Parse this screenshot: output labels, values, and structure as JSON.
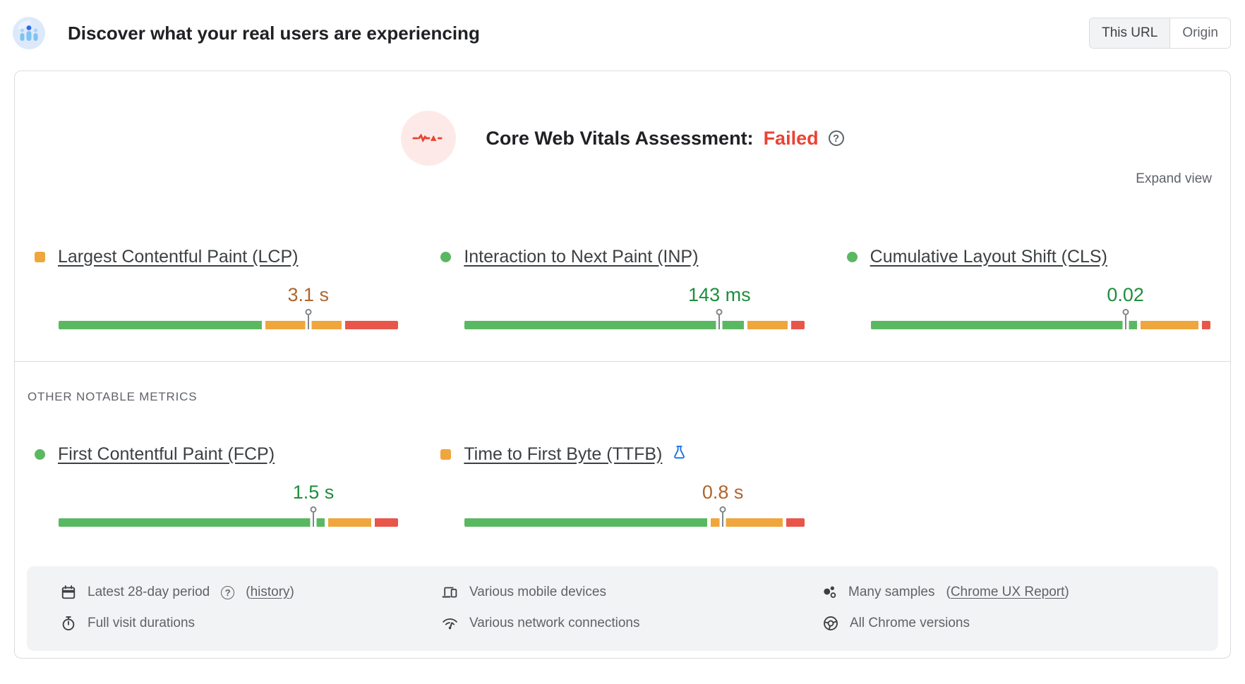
{
  "header": {
    "title": "Discover what your real users are experiencing",
    "toggle": {
      "options": [
        "This URL",
        "Origin"
      ],
      "selected": "This URL"
    }
  },
  "assessment": {
    "label": "Core Web Vitals Assessment:",
    "result": "Failed",
    "result_color": "#ea4335",
    "expand_label": "Expand view"
  },
  "section_label": "OTHER NOTABLE METRICS",
  "colors": {
    "bar_good": "#5bb862",
    "bar_needs_improvement": "#efa63d",
    "bar_poor": "#e8564b",
    "value_good": "#1e8e3e",
    "value_needs_improvement": "#b0652d",
    "pin": "#80868b",
    "assessment_icon_bg": "#fdeae8",
    "assessment_icon_glyph": "#ea4335",
    "experiment_icon": "#1a73e8"
  },
  "metrics": [
    {
      "label": "Largest Contentful Paint (LCP)",
      "value": "3.1 s",
      "value_color": "#b0652d",
      "marker_shape": "square",
      "marker_color": "#efa63d",
      "bar": {
        "green": 61,
        "orange": 23,
        "red": 16,
        "pin": 73.5
      }
    },
    {
      "label": "Interaction to Next Paint (INP)",
      "value": "143 ms",
      "value_color": "#1e8e3e",
      "marker_shape": "circle",
      "marker_color": "#5bb862",
      "bar": {
        "green": 84,
        "orange": 12,
        "red": 4,
        "pin": 75
      }
    },
    {
      "label": "Cumulative Layout Shift (CLS)",
      "value": "0.02",
      "value_color": "#1e8e3e",
      "marker_shape": "circle",
      "marker_color": "#5bb862",
      "bar": {
        "green": 80,
        "orange": 17.5,
        "red": 2.5,
        "pin": 75
      }
    },
    {
      "label": "First Contentful Paint (FCP)",
      "value": "1.5 s",
      "value_color": "#1e8e3e",
      "marker_shape": "circle",
      "marker_color": "#5bb862",
      "bar": {
        "green": 80,
        "orange": 13,
        "red": 7,
        "pin": 75
      }
    },
    {
      "label": "Time to First Byte (TTFB)",
      "value": "0.8 s",
      "value_color": "#b0652d",
      "marker_shape": "square",
      "marker_color": "#efa63d",
      "bar": {
        "green": 73,
        "orange": 21.5,
        "red": 5.5,
        "pin": 76
      },
      "experimental": true
    }
  ],
  "footer": {
    "items": [
      {
        "icon": "calendar-icon",
        "text": "Latest 28-day period",
        "has_help": true,
        "link_open": "(",
        "link": "history",
        "link_close": ")"
      },
      {
        "icon": "devices-icon",
        "text": "Various mobile devices"
      },
      {
        "icon": "samples-icon",
        "text": "Many samples",
        "link_open": "(",
        "link": "Chrome UX Report",
        "link_close": ")"
      },
      {
        "icon": "stopwatch-icon",
        "text": "Full visit durations"
      },
      {
        "icon": "network-icon",
        "text": "Various network connections"
      },
      {
        "icon": "chrome-icon",
        "text": "All Chrome versions"
      }
    ]
  }
}
